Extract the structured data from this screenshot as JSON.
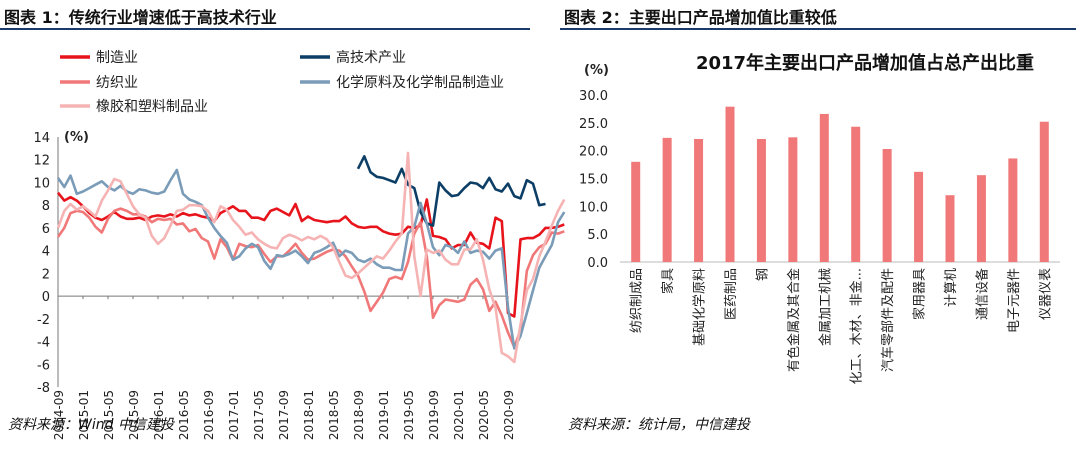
{
  "left": {
    "figure_title": "图表 1：传统行业增速低于高技术行业",
    "source": "资料来源：Wind    中信建投"
  },
  "right": {
    "figure_title": "图表 2：主要出口产品增加值比重较低",
    "source": "资料来源：统计局，中信建投"
  },
  "chart_data": [
    {
      "type": "line",
      "title": "",
      "ylabel": "(%)",
      "xlabel": "",
      "ylim": [
        -8,
        14
      ],
      "yticks": [
        -8,
        -6,
        -4,
        -2,
        0,
        2,
        4,
        6,
        8,
        10,
        12,
        14
      ],
      "x_tick_labels": [
        "2014-09",
        "2015-01",
        "2015-05",
        "2015-09",
        "2016-01",
        "2016-05",
        "2016-09",
        "2017-01",
        "2017-05",
        "2017-09",
        "2018-01",
        "2018-05",
        "2018-09",
        "2019-01",
        "2019-05",
        "2019-09",
        "2020-01",
        "2020-05",
        "2020-09"
      ],
      "x_start": "2014-09",
      "legend_position": "top",
      "grid": false,
      "series": [
        {
          "name": "制造业",
          "color": "#e8141c",
          "start": "2014-09",
          "values": [
            9.1,
            8.4,
            8.7,
            8.4,
            7.9,
            7.3,
            6.9,
            6.7,
            7.0,
            7.4,
            7.0,
            6.8,
            6.8,
            6.9,
            6.7,
            7.0,
            7.1,
            7.0,
            7.2,
            7.0,
            7.3,
            7.1,
            7.2,
            7.0,
            6.9,
            6.6,
            7.3,
            7.6,
            7.9,
            7.5,
            7.5,
            6.9,
            6.9,
            6.7,
            7.5,
            7.7,
            7.4,
            7.1,
            8.1,
            6.6,
            7.0,
            6.7,
            6.6,
            6.5,
            6.6,
            6.6,
            7.0,
            6.4,
            6.1,
            6.0,
            6.1,
            6.1,
            5.7,
            5.5,
            5.4,
            5.5,
            6.1,
            6.0,
            6.2,
            8.5,
            5.3,
            5.2,
            5.0,
            4.2,
            4.5,
            4.5,
            5.6,
            4.7,
            4.6,
            4.2,
            6.9,
            6.6,
            -1.5,
            -1.8,
            5.0,
            5.1,
            5.1,
            5.4,
            6.0,
            6.0,
            6.1,
            6.3
          ]
        },
        {
          "name": "高技术产业",
          "color": "#0d3e66",
          "start": "2018-09",
          "values": [
            11.2,
            12.3,
            10.9,
            10.5,
            10.4,
            10.2,
            10.0,
            11.2,
            9.8,
            9.5,
            7.4,
            6.4,
            6.2,
            10.0,
            9.3,
            8.8,
            8.9,
            9.5,
            10.0,
            9.9,
            9.5,
            10.4,
            9.4,
            9.2,
            9.9,
            8.8,
            8.6,
            10.2,
            9.9,
            8.0,
            8.1
          ]
        },
        {
          "name": "纺织业",
          "color": "#f07878",
          "start": "2014-09",
          "values": [
            5.2,
            6.0,
            7.3,
            7.5,
            7.4,
            6.9,
            6.1,
            5.6,
            6.8,
            7.5,
            7.7,
            7.5,
            7.2,
            7.2,
            7.0,
            6.5,
            6.8,
            6.7,
            6.8,
            6.3,
            6.4,
            5.7,
            5.9,
            5.1,
            4.8,
            3.3,
            5.0,
            4.3,
            3.2,
            4.6,
            4.4,
            4.3,
            4.5,
            3.7,
            3.0,
            3.5,
            3.5,
            4.0,
            4.6,
            3.8,
            3.2,
            3.3,
            3.6,
            3.9,
            4.1,
            4.0,
            3.5,
            2.6,
            1.8,
            0.4,
            -1.3,
            -0.5,
            0.3,
            1.5,
            1.7,
            1.5,
            3.0,
            5.5,
            6.5,
            3.5,
            -1.9,
            -0.8,
            -0.3,
            -0.4,
            -0.5,
            -0.3,
            1.0,
            1.5,
            0.6,
            -1.3,
            -0.5,
            -1.7,
            -3.2,
            -4.5,
            -3.0,
            2.2,
            3.6,
            4.3,
            4.6,
            5.6,
            5.5,
            5.7
          ]
        },
        {
          "name": "化学原料及化学制品制造业",
          "color": "#7a9cb8",
          "start": "2014-09",
          "values": [
            10.4,
            9.6,
            10.6,
            9.0,
            9.2,
            9.5,
            9.8,
            10.1,
            9.6,
            9.3,
            9.7,
            9.2,
            9.0,
            9.4,
            9.3,
            9.1,
            9.0,
            9.2,
            10.2,
            11.1,
            9.0,
            8.5,
            8.3,
            8.0,
            6.9,
            6.0,
            5.3,
            4.7,
            3.2,
            3.5,
            4.2,
            4.6,
            4.3,
            3.1,
            2.4,
            3.6,
            3.5,
            3.7,
            4.0,
            3.5,
            2.9,
            3.8,
            4.0,
            4.3,
            4.7,
            3.5,
            4.0,
            3.8,
            3.2,
            3.0,
            3.3,
            2.8,
            2.5,
            2.5,
            2.3,
            2.3,
            5.5,
            6.1,
            8.2,
            6.4,
            4.3,
            3.6,
            4.5,
            4.3,
            3.8,
            4.8,
            3.8,
            4.0,
            3.9,
            3.3,
            4.0,
            4.2,
            -1.0,
            -4.6,
            -3.5,
            -1.5,
            0.5,
            2.5,
            3.5,
            4.5,
            6.5,
            7.4
          ]
        },
        {
          "name": "橡胶和塑料制品业",
          "color": "#f6b3b3",
          "start": "2014-09",
          "values": [
            6.0,
            7.5,
            8.1,
            7.6,
            7.9,
            7.5,
            7.0,
            8.4,
            9.3,
            10.3,
            10.1,
            9.0,
            7.9,
            7.2,
            6.9,
            5.3,
            4.6,
            5.1,
            6.2,
            7.5,
            7.6,
            8.0,
            8.0,
            7.9,
            7.5,
            6.5,
            7.9,
            7.6,
            6.7,
            6.1,
            5.4,
            5.6,
            5.0,
            4.6,
            4.3,
            4.2,
            5.1,
            5.4,
            5.2,
            4.9,
            5.2,
            5.0,
            5.3,
            5.0,
            4.3,
            3.0,
            1.8,
            1.6,
            2.0,
            2.5,
            3.0,
            3.5,
            3.3,
            4.0,
            4.8,
            5.5,
            12.6,
            3.5,
            0.0,
            4.1,
            3.8,
            4.0,
            3.2,
            2.8,
            2.8,
            4.1,
            4.1,
            5.0,
            3.2,
            0.6,
            -1.0,
            -5.0,
            -5.3,
            -5.8,
            -2.5,
            0.5,
            1.5,
            3.5,
            4.8,
            6.2,
            7.5,
            8.5
          ]
        }
      ]
    },
    {
      "type": "bar",
      "title": "2017年主要出口产品增加值占总产出比重",
      "ylabel": "(%)",
      "xlabel": "",
      "ylim": [
        0,
        30
      ],
      "yticks": [
        "0.0",
        "5.0",
        "10.0",
        "15.0",
        "20.0",
        "25.0",
        "30.0"
      ],
      "color": "#f07878",
      "grid": false,
      "categories": [
        "纺织制成品",
        "家具",
        "基础化学原料",
        "医药制品",
        "钢",
        "有色金属及其合金",
        "金属加工机械",
        "化工、木材、非金...",
        "汽车零部件及配件",
        "家用器具",
        "计算机",
        "通信设备",
        "电子元器件",
        "仪器仪表"
      ],
      "values": [
        18.0,
        22.3,
        22.1,
        27.9,
        22.1,
        22.4,
        26.6,
        24.3,
        20.3,
        16.2,
        12.0,
        15.6,
        18.6,
        25.2
      ]
    }
  ]
}
